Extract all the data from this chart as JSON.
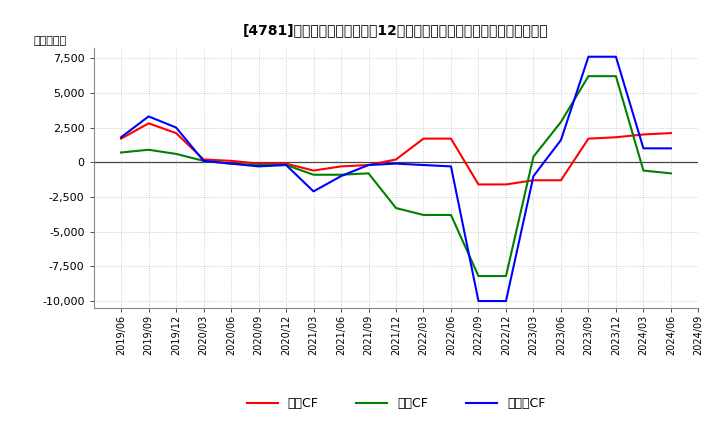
{
  "title_bracket": "[4781]",
  "title_main": "キャッシュフローの12か月移動合計の対前年同期増減額の推移",
  "ylabel": "（百万円）",
  "dates": [
    "2019/06",
    "2019/09",
    "2019/12",
    "2020/03",
    "2020/06",
    "2020/09",
    "2020/12",
    "2021/03",
    "2021/06",
    "2021/09",
    "2021/12",
    "2022/03",
    "2022/06",
    "2022/09",
    "2022/12",
    "2023/03",
    "2023/06",
    "2023/09",
    "2023/12",
    "2024/03",
    "2024/06",
    "2024/09"
  ],
  "operating_cf": [
    1700,
    2800,
    2100,
    200,
    100,
    -100,
    -100,
    -600,
    -300,
    -200,
    200,
    1700,
    1700,
    -1600,
    -1600,
    -1300,
    -1300,
    1700,
    1800,
    2000,
    2100,
    null
  ],
  "investing_cf": [
    700,
    900,
    600,
    100,
    -100,
    -200,
    -200,
    -900,
    -900,
    -800,
    -3300,
    -3800,
    -3800,
    -8200,
    -8200,
    400,
    2900,
    6200,
    6200,
    -600,
    -800,
    null
  ],
  "free_cf": [
    1800,
    3300,
    2500,
    100,
    -100,
    -300,
    -200,
    -2100,
    -1000,
    -200,
    -100,
    -200,
    -300,
    -10000,
    -10000,
    -1000,
    1600,
    7600,
    7600,
    1000,
    1000,
    null
  ],
  "colors": {
    "operating": "#ff0000",
    "investing": "#008000",
    "free": "#0000ff"
  },
  "ylim": [
    -10500,
    8000
  ],
  "yticks": [
    -10000,
    -7500,
    -5000,
    -2500,
    0,
    2500,
    5000,
    7500
  ],
  "bg_color": "#ffffff",
  "grid_color": "#aaaaaa",
  "line_width": 1.5,
  "legend_labels": [
    "営業CF",
    "投資CF",
    "フリーCF"
  ]
}
